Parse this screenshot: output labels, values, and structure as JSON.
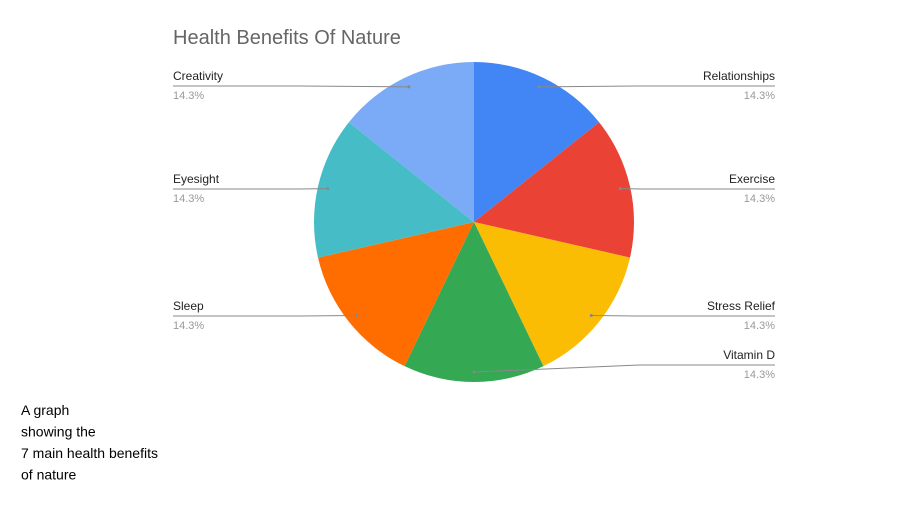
{
  "chart_data": {
    "type": "pie",
    "title": "Health Benefits Of Nature",
    "categories": [
      "Relationships",
      "Exercise",
      "Stress Relief",
      "Vitamin D",
      "Sleep",
      "Eyesight",
      "Creativity"
    ],
    "values": [
      14.3,
      14.3,
      14.3,
      14.3,
      14.3,
      14.3,
      14.3
    ],
    "value_labels": [
      "14.3%",
      "14.3%",
      "14.3%",
      "14.3%",
      "14.3%",
      "14.3%",
      "14.3%"
    ],
    "colors": [
      "#4285f4",
      "#ea4335",
      "#fbbc04",
      "#34a853",
      "#ff6d01",
      "#46bdc6",
      "#7baaf7"
    ]
  },
  "caption": [
    "A graph",
    "showing the",
    "7 main health benefits",
    "of nature"
  ]
}
